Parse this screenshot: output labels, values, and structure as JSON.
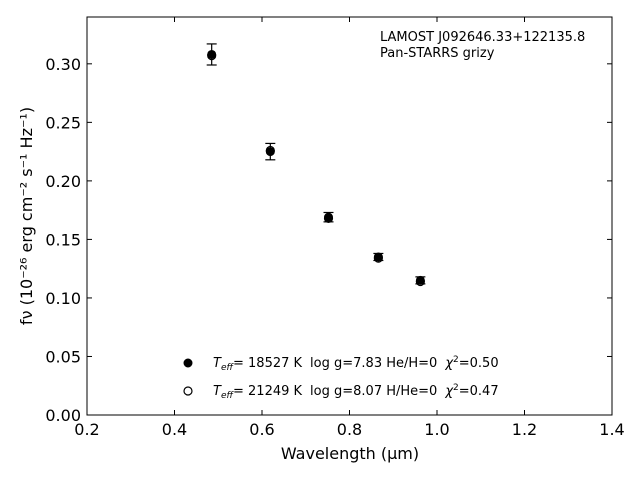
{
  "chart_data": {
    "type": "scatter",
    "annotation_lines": [
      "LAMOST J092646.33+122135.8",
      "Pan-STARRS grizy"
    ],
    "xlabel": "Wavelength (μm)",
    "ylabel": "fν (10⁻²⁶ erg cm⁻² s⁻¹ Hz⁻¹)",
    "xlim": [
      0.2,
      1.4
    ],
    "ylim": [
      0.0,
      0.34
    ],
    "x_ticks": [
      0.2,
      0.4,
      0.6,
      0.8,
      1.0,
      1.2,
      1.4
    ],
    "x_tick_labels": [
      "0.2",
      "0.4",
      "0.6",
      "0.8",
      "1.0",
      "1.2",
      "1.4"
    ],
    "y_ticks": [
      0.0,
      0.05,
      0.1,
      0.15,
      0.2,
      0.25,
      0.3
    ],
    "y_tick_labels": [
      "0.00",
      "0.05",
      "0.10",
      "0.15",
      "0.20",
      "0.25",
      "0.30"
    ],
    "grid": false,
    "legend_position": "lower-center",
    "series": [
      {
        "name": "T_eff= 18527 K  log g=7.83  He/H=0  χ²=0.50",
        "marker": "filled-circle",
        "x": [
          0.485,
          0.619,
          0.752,
          0.866,
          0.962
        ],
        "y": [
          0.308,
          0.225,
          0.169,
          0.135,
          0.115
        ],
        "yerr": [
          0.009,
          0.007,
          0.004,
          0.003,
          0.003
        ]
      },
      {
        "name": "T_eff= 21249 K  log g=8.07  H/He=0  χ²=0.47",
        "marker": "open-circle",
        "x": [
          0.485,
          0.619,
          0.752,
          0.866,
          0.962
        ],
        "y": [
          0.307,
          0.226,
          0.168,
          0.134,
          0.114
        ],
        "yerr": []
      }
    ],
    "legend": [
      {
        "teff": "= 18527 K",
        "rest": "log g=7.83  He/H=0",
        "chi": "=0.50",
        "marker": "filled-circle"
      },
      {
        "teff": "= 21249 K",
        "rest": "log g=8.07  H/He=0",
        "chi": "=0.47",
        "marker": "open-circle"
      }
    ]
  }
}
